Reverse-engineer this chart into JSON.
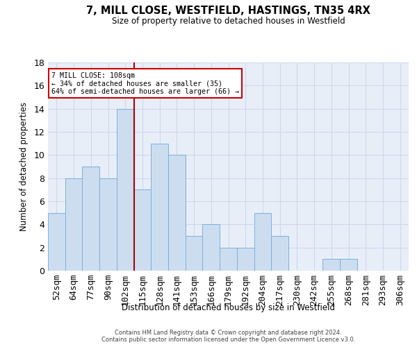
{
  "title": "7, MILL CLOSE, WESTFIELD, HASTINGS, TN35 4RX",
  "subtitle": "Size of property relative to detached houses in Westfield",
  "xlabel": "Distribution of detached houses by size in Westfield",
  "ylabel": "Number of detached properties",
  "bar_labels": [
    "52sqm",
    "64sqm",
    "77sqm",
    "90sqm",
    "102sqm",
    "115sqm",
    "128sqm",
    "141sqm",
    "153sqm",
    "166sqm",
    "179sqm",
    "192sqm",
    "204sqm",
    "217sqm",
    "230sqm",
    "242sqm",
    "255sqm",
    "268sqm",
    "281sqm",
    "293sqm",
    "306sqm"
  ],
  "bar_values": [
    5,
    8,
    9,
    8,
    14,
    7,
    11,
    10,
    3,
    4,
    2,
    2,
    5,
    3,
    0,
    0,
    1,
    1,
    0,
    0,
    0
  ],
  "bar_color": "#ccddf0",
  "bar_edgecolor": "#7ab0d8",
  "grid_color": "#ced8ec",
  "bg_color": "#e8eef8",
  "vline_x": 4.5,
  "vline_color": "#aa0000",
  "ann_text": "7 MILL CLOSE: 108sqm\n← 34% of detached houses are smaller (35)\n64% of semi-detached houses are larger (66) →",
  "ann_box_edgecolor": "#cc0000",
  "ylim": [
    0,
    18
  ],
  "yticks": [
    0,
    2,
    4,
    6,
    8,
    10,
    12,
    14,
    16,
    18
  ],
  "footer": "Contains HM Land Registry data © Crown copyright and database right 2024.\nContains public sector information licensed under the Open Government Licence v3.0."
}
